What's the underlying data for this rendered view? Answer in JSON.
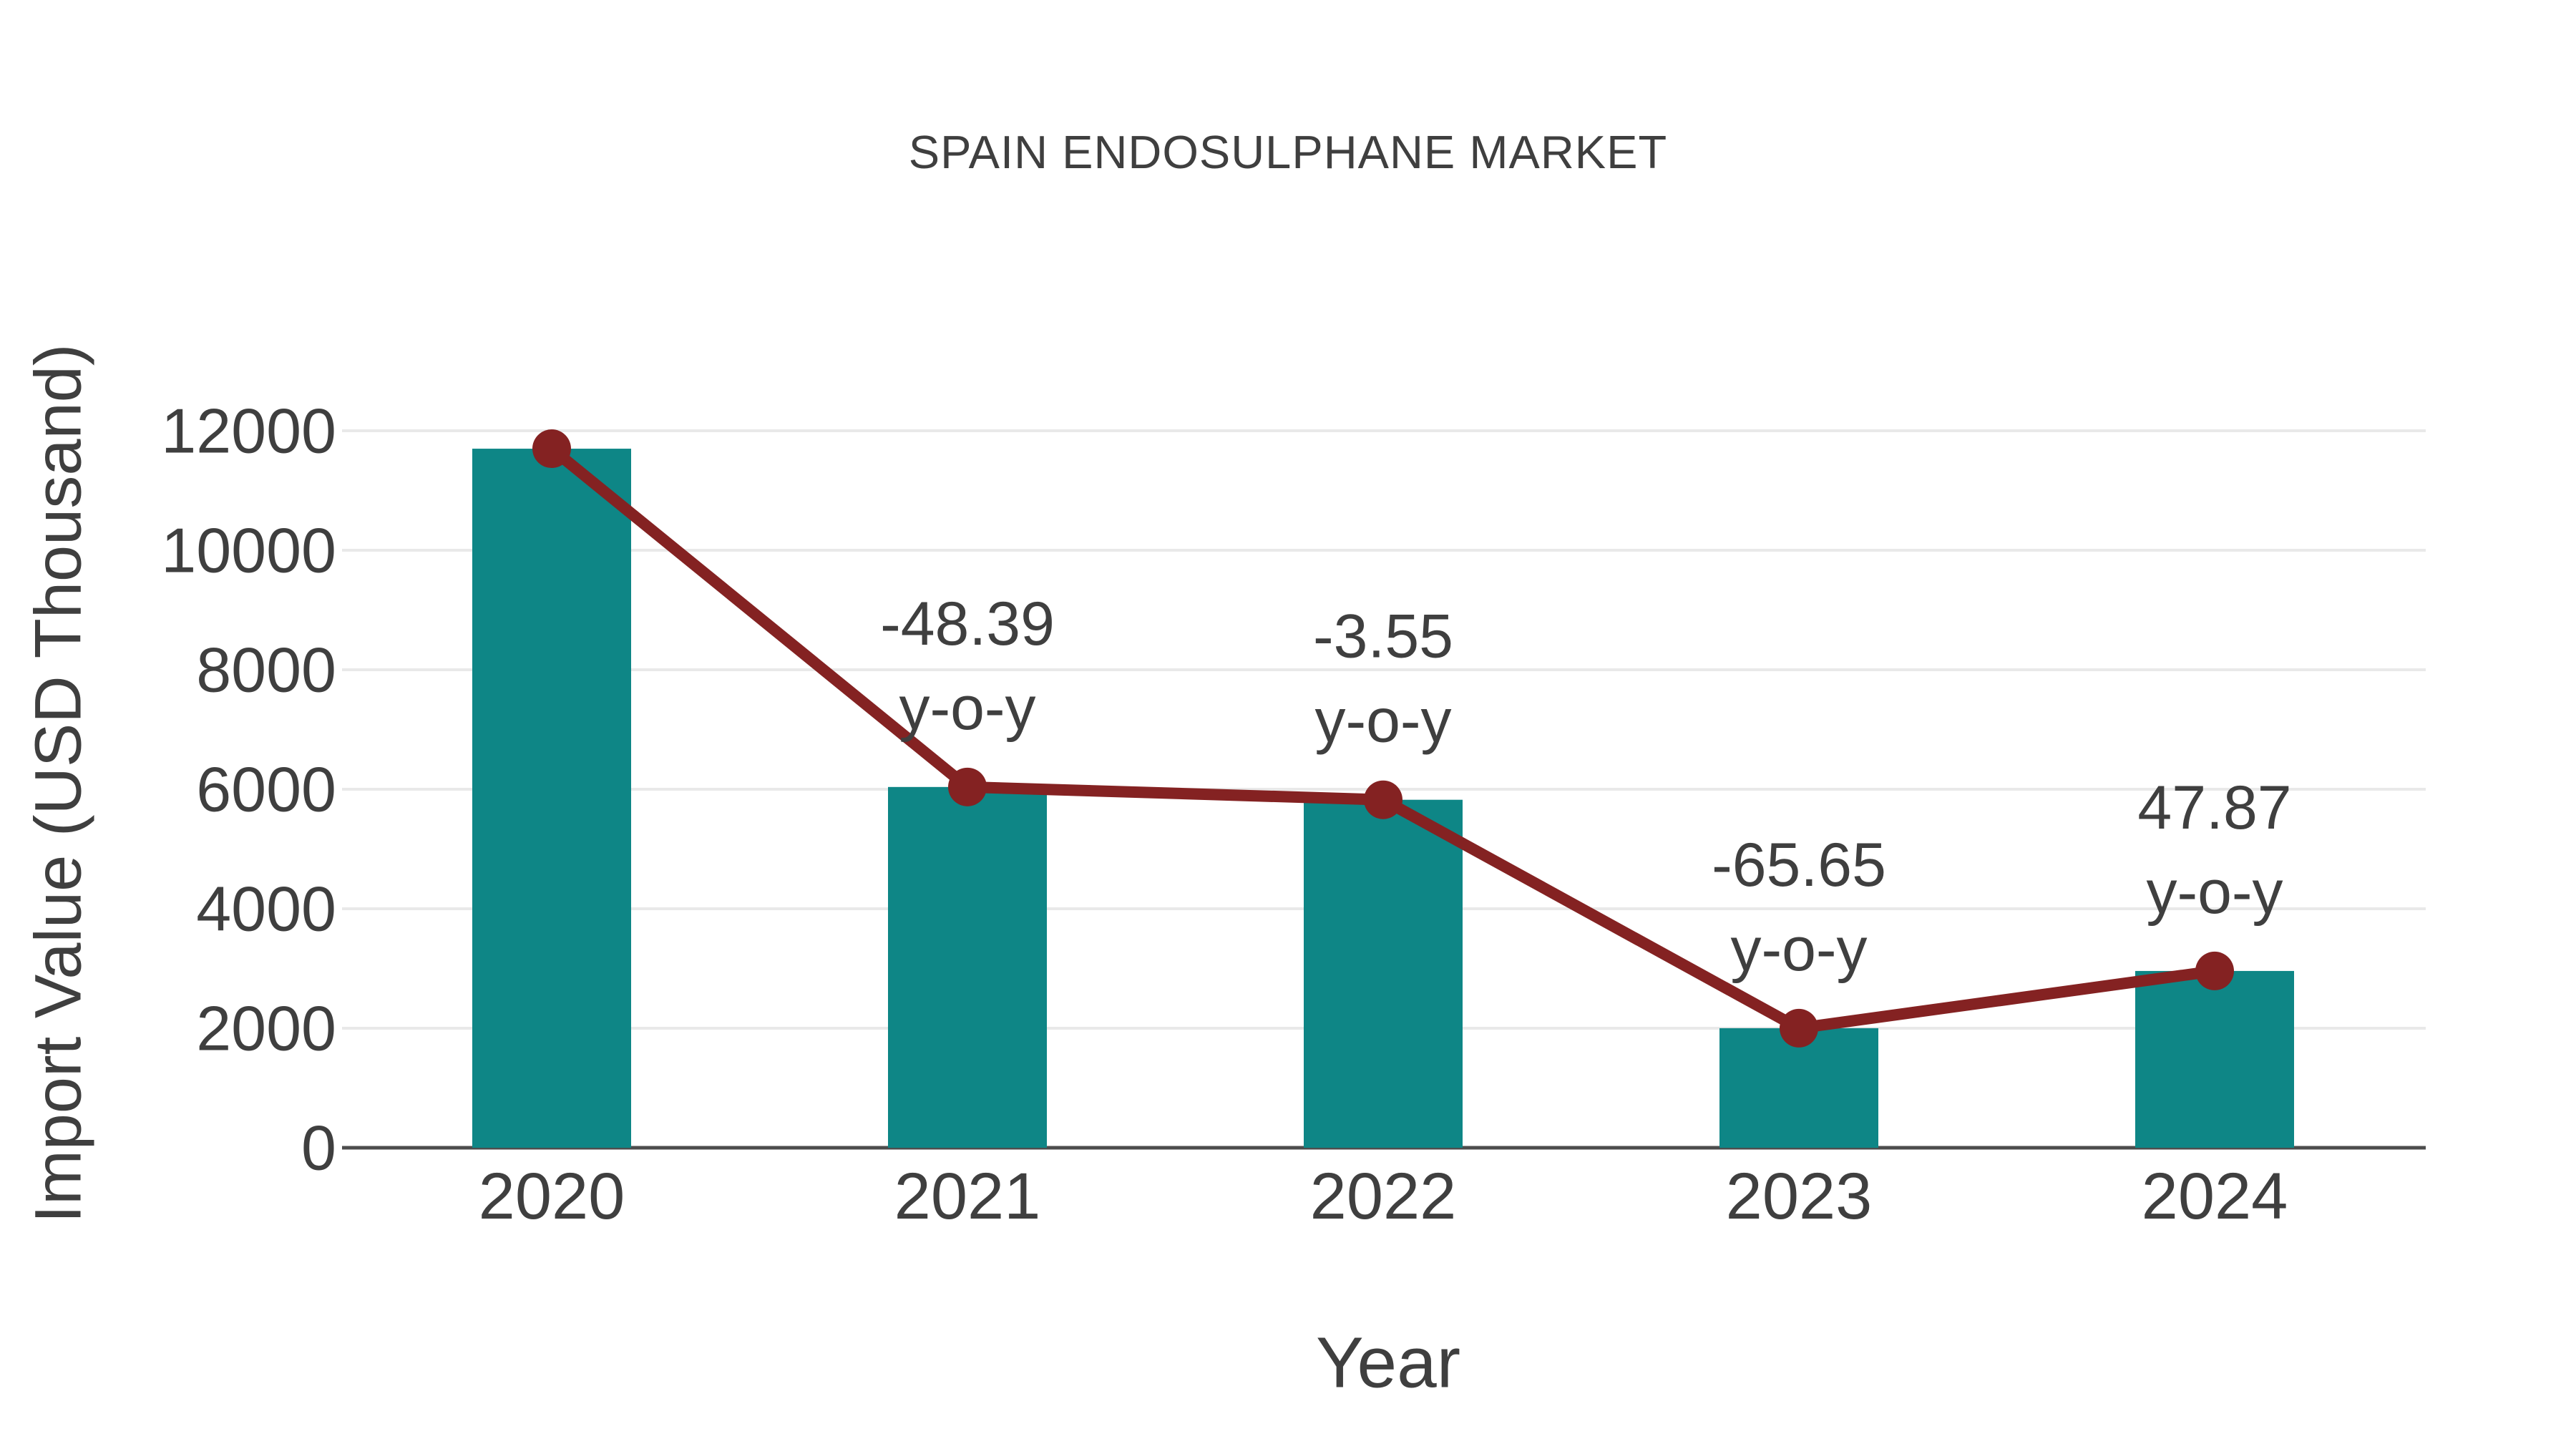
{
  "chart_data": {
    "type": "bar",
    "title": "SPAIN ENDOSULPHANE MARKET",
    "xlabel": "Year",
    "ylabel": "Import Value (USD Thousand)",
    "categories": [
      "2020",
      "2021",
      "2022",
      "2023",
      "2024"
    ],
    "series": [
      {
        "name": "Import Value (USD Thousand)",
        "type": "bar",
        "values": [
          11700,
          6038,
          5824,
          2001,
          2959
        ]
      },
      {
        "name": "Year-over-year trend",
        "type": "line",
        "values": [
          11700,
          6038,
          5824,
          2001,
          2959
        ]
      }
    ],
    "annotations": [
      {
        "category": "2021",
        "value_label": "-48.39",
        "suffix_label": "y-o-y"
      },
      {
        "category": "2022",
        "value_label": "-3.55",
        "suffix_label": "y-o-y"
      },
      {
        "category": "2023",
        "value_label": "-65.65",
        "suffix_label": "y-o-y"
      },
      {
        "category": "2024",
        "value_label": "47.87",
        "suffix_label": "y-o-y"
      }
    ],
    "ytick_labels": [
      "0",
      "2000",
      "4000",
      "6000",
      "8000",
      "10000",
      "12000"
    ],
    "yticks": [
      0,
      2000,
      4000,
      6000,
      8000,
      10000,
      12000
    ],
    "ylim": [
      0,
      12000
    ],
    "grid": true,
    "legend": "none",
    "colors": {
      "bar": "#0e8686",
      "line": "#842222",
      "marker": "#842222",
      "grid": "#e9e9e9",
      "axis": "#4d4d4d",
      "text": "#3f3f3f"
    }
  }
}
